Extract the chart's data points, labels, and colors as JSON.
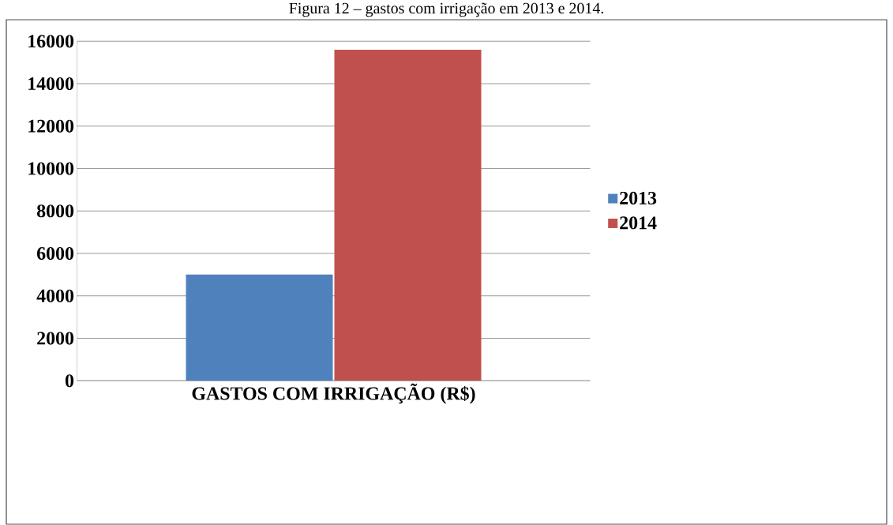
{
  "chart_data": {
    "type": "bar",
    "title": "Figura 12 – gastos com irrigação em 2013 e 2014.",
    "categories": [
      "GASTOS COM IRRIGAÇÃO (R$)"
    ],
    "series": [
      {
        "name": "2013",
        "color": "#4f81bd",
        "values": [
          5000
        ]
      },
      {
        "name": "2014",
        "color": "#c0504d",
        "values": [
          15600
        ]
      }
    ],
    "ylim": [
      0,
      16000
    ],
    "yticks": [
      0,
      2000,
      4000,
      6000,
      8000,
      10000,
      12000,
      14000,
      16000
    ],
    "grid": "y",
    "legend": "right"
  }
}
